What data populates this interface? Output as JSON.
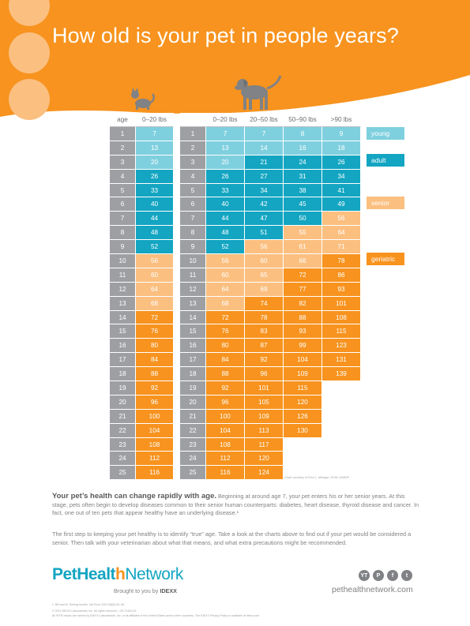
{
  "header": {
    "title": "How old is your pet in people years?",
    "accent_color": "#f7931e",
    "circle_color": "#fbbf80"
  },
  "cat_table": {
    "icon": "cat-icon",
    "headers": [
      "age",
      "0–20 lbs"
    ],
    "rows": [
      {
        "age": "1",
        "v": [
          "7"
        ],
        "c": [
          "young"
        ]
      },
      {
        "age": "2",
        "v": [
          "13"
        ],
        "c": [
          "young"
        ]
      },
      {
        "age": "3",
        "v": [
          "20"
        ],
        "c": [
          "young"
        ]
      },
      {
        "age": "4",
        "v": [
          "26"
        ],
        "c": [
          "adult"
        ]
      },
      {
        "age": "5",
        "v": [
          "33"
        ],
        "c": [
          "adult"
        ]
      },
      {
        "age": "6",
        "v": [
          "40"
        ],
        "c": [
          "adult"
        ]
      },
      {
        "age": "7",
        "v": [
          "44"
        ],
        "c": [
          "adult"
        ]
      },
      {
        "age": "8",
        "v": [
          "48"
        ],
        "c": [
          "adult"
        ]
      },
      {
        "age": "9",
        "v": [
          "52"
        ],
        "c": [
          "adult"
        ]
      },
      {
        "age": "10",
        "v": [
          "56"
        ],
        "c": [
          "senior"
        ]
      },
      {
        "age": "11",
        "v": [
          "60"
        ],
        "c": [
          "senior"
        ]
      },
      {
        "age": "12",
        "v": [
          "64"
        ],
        "c": [
          "senior"
        ]
      },
      {
        "age": "13",
        "v": [
          "68"
        ],
        "c": [
          "senior"
        ]
      },
      {
        "age": "14",
        "v": [
          "72"
        ],
        "c": [
          "geriatric"
        ]
      },
      {
        "age": "15",
        "v": [
          "76"
        ],
        "c": [
          "geriatric"
        ]
      },
      {
        "age": "16",
        "v": [
          "80"
        ],
        "c": [
          "geriatric"
        ]
      },
      {
        "age": "17",
        "v": [
          "84"
        ],
        "c": [
          "geriatric"
        ]
      },
      {
        "age": "18",
        "v": [
          "88"
        ],
        "c": [
          "geriatric"
        ]
      },
      {
        "age": "19",
        "v": [
          "92"
        ],
        "c": [
          "geriatric"
        ]
      },
      {
        "age": "20",
        "v": [
          "96"
        ],
        "c": [
          "geriatric"
        ]
      },
      {
        "age": "21",
        "v": [
          "100"
        ],
        "c": [
          "geriatric"
        ]
      },
      {
        "age": "22",
        "v": [
          "104"
        ],
        "c": [
          "geriatric"
        ]
      },
      {
        "age": "23",
        "v": [
          "108"
        ],
        "c": [
          "geriatric"
        ]
      },
      {
        "age": "24",
        "v": [
          "112"
        ],
        "c": [
          "geriatric"
        ]
      },
      {
        "age": "25",
        "v": [
          "116"
        ],
        "c": [
          "geriatric"
        ]
      }
    ]
  },
  "dog_table": {
    "icon": "dog-icon",
    "headers": [
      "",
      "0–20 lbs",
      "20–50 lbs",
      "50–90 lbs",
      ">90 lbs"
    ],
    "rows": [
      {
        "age": "1",
        "v": [
          "7",
          "7",
          "8",
          "9"
        ],
        "c": [
          "young",
          "young",
          "young",
          "young"
        ]
      },
      {
        "age": "2",
        "v": [
          "13",
          "14",
          "16",
          "18"
        ],
        "c": [
          "young",
          "young",
          "young",
          "young"
        ]
      },
      {
        "age": "3",
        "v": [
          "20",
          "21",
          "24",
          "26"
        ],
        "c": [
          "young",
          "adult",
          "adult",
          "adult"
        ]
      },
      {
        "age": "4",
        "v": [
          "26",
          "27",
          "31",
          "34"
        ],
        "c": [
          "adult",
          "adult",
          "adult",
          "adult"
        ]
      },
      {
        "age": "5",
        "v": [
          "33",
          "34",
          "38",
          "41"
        ],
        "c": [
          "adult",
          "adult",
          "adult",
          "adult"
        ]
      },
      {
        "age": "6",
        "v": [
          "40",
          "42",
          "45",
          "49"
        ],
        "c": [
          "adult",
          "adult",
          "adult",
          "adult"
        ]
      },
      {
        "age": "7",
        "v": [
          "44",
          "47",
          "50",
          "56"
        ],
        "c": [
          "adult",
          "adult",
          "adult",
          "senior"
        ]
      },
      {
        "age": "8",
        "v": [
          "48",
          "51",
          "55",
          "64"
        ],
        "c": [
          "adult",
          "adult",
          "senior",
          "senior"
        ]
      },
      {
        "age": "9",
        "v": [
          "52",
          "56",
          "61",
          "71"
        ],
        "c": [
          "adult",
          "senior",
          "senior",
          "senior"
        ]
      },
      {
        "age": "10",
        "v": [
          "56",
          "60",
          "66",
          "78"
        ],
        "c": [
          "senior",
          "senior",
          "senior",
          "geriatric"
        ]
      },
      {
        "age": "11",
        "v": [
          "60",
          "65",
          "72",
          "86"
        ],
        "c": [
          "senior",
          "senior",
          "geriatric",
          "geriatric"
        ]
      },
      {
        "age": "12",
        "v": [
          "64",
          "69",
          "77",
          "93"
        ],
        "c": [
          "senior",
          "senior",
          "geriatric",
          "geriatric"
        ]
      },
      {
        "age": "13",
        "v": [
          "68",
          "74",
          "82",
          "101"
        ],
        "c": [
          "senior",
          "geriatric",
          "geriatric",
          "geriatric"
        ]
      },
      {
        "age": "14",
        "v": [
          "72",
          "78",
          "88",
          "108"
        ],
        "c": [
          "geriatric",
          "geriatric",
          "geriatric",
          "geriatric"
        ]
      },
      {
        "age": "15",
        "v": [
          "76",
          "83",
          "93",
          "115"
        ],
        "c": [
          "geriatric",
          "geriatric",
          "geriatric",
          "geriatric"
        ]
      },
      {
        "age": "16",
        "v": [
          "80",
          "87",
          "99",
          "123"
        ],
        "c": [
          "geriatric",
          "geriatric",
          "geriatric",
          "geriatric"
        ]
      },
      {
        "age": "17",
        "v": [
          "84",
          "92",
          "104",
          "131"
        ],
        "c": [
          "geriatric",
          "geriatric",
          "geriatric",
          "geriatric"
        ]
      },
      {
        "age": "18",
        "v": [
          "88",
          "96",
          "109",
          "139"
        ],
        "c": [
          "geriatric",
          "geriatric",
          "geriatric",
          "geriatric"
        ]
      },
      {
        "age": "19",
        "v": [
          "92",
          "101",
          "115",
          ""
        ],
        "c": [
          "geriatric",
          "geriatric",
          "geriatric",
          "blank"
        ]
      },
      {
        "age": "20",
        "v": [
          "96",
          "105",
          "120",
          ""
        ],
        "c": [
          "geriatric",
          "geriatric",
          "geriatric",
          "blank"
        ]
      },
      {
        "age": "21",
        "v": [
          "100",
          "109",
          "126",
          ""
        ],
        "c": [
          "geriatric",
          "geriatric",
          "geriatric",
          "blank"
        ]
      },
      {
        "age": "22",
        "v": [
          "104",
          "113",
          "130",
          ""
        ],
        "c": [
          "geriatric",
          "geriatric",
          "geriatric",
          "blank"
        ]
      },
      {
        "age": "23",
        "v": [
          "108",
          "117",
          "",
          ""
        ],
        "c": [
          "geriatric",
          "geriatric",
          "blank",
          "blank"
        ]
      },
      {
        "age": "24",
        "v": [
          "112",
          "120",
          "",
          ""
        ],
        "c": [
          "geriatric",
          "geriatric",
          "blank",
          "blank"
        ]
      },
      {
        "age": "25",
        "v": [
          "116",
          "124",
          "",
          ""
        ],
        "c": [
          "geriatric",
          "geriatric",
          "blank",
          "blank"
        ]
      }
    ]
  },
  "legend": {
    "young": "young",
    "adult": "adult",
    "senior": "senior",
    "geriatric": "geriatric"
  },
  "credit": "Chart courtesy of Fred L. Metzger, DVM, DABVP",
  "body": {
    "p1_lead": "Your pet’s health can change rapidly with age.",
    "p1_text": " Beginning at around age 7, your pet enters his or her senior years. At this stage, pets often begin to develop diseases common to their senior human counterparts: diabetes, heart disease, thyroid disease and cancer. In fact, one out of ten pets that appear healthy have an underlying disease.¹",
    "p2": "The first step to keeping your pet healthy is to identify “true” age. Take a look at the charts above to find out if your pet would be considered a senior. Then talk with your veterinarian about what that means, and what extra precautions might be recommended."
  },
  "footer": {
    "logo_part1": "Pet",
    "logo_part2": "Healt",
    "logo_part3": "h",
    "logo_part4": "Network",
    "tagline_prefix": "Brought to you by ",
    "tagline_brand": "IDEXX",
    "social": [
      "YT",
      "P",
      "f",
      "t"
    ],
    "website": "pethealthnetwork.com",
    "fine_1": "1. Bill and M. Seeing trouble. Vet Econ 2007;48(8):40–46.",
    "fine_2": "© 2014 IDEXX Laboratories, Inc. All rights reserved. • 09-71400-00",
    "fine_3": "All ®/TM marks are owned by IDEXX Laboratories, Inc. or its affiliates in the United States and/or other countries. The IDEXX Privacy Policy is available at idexx.com."
  }
}
